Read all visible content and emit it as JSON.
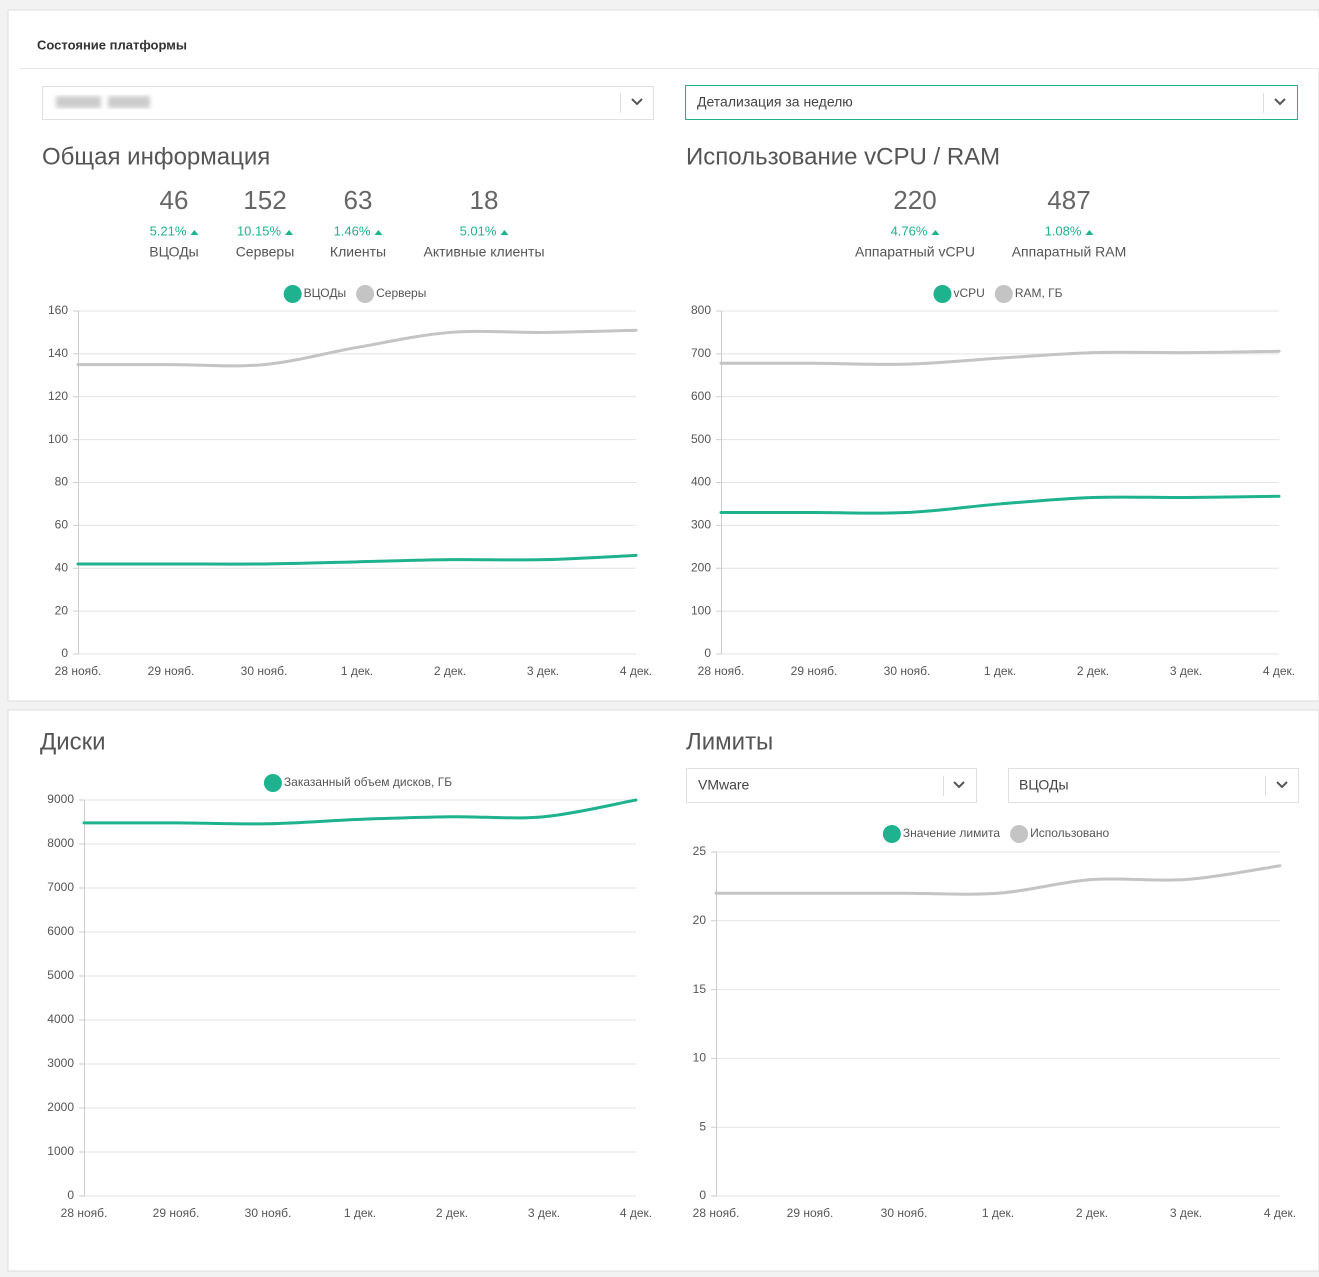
{
  "header": {
    "title": "Состояние платформы"
  },
  "selects": {
    "period": "Детализация за неделю",
    "platform": "VMware",
    "resource": "ВЦОДы"
  },
  "chart_data": [
    {
      "type": "line",
      "title": "Общая информация",
      "stats": [
        {
          "value": "46",
          "change": "5.21%",
          "label": "ВЦОДы"
        },
        {
          "value": "152",
          "change": "10.15%",
          "label": "Серверы"
        },
        {
          "value": "63",
          "change": "1.46%",
          "label": "Клиенты"
        },
        {
          "value": "18",
          "change": "5.01%",
          "label": "Активные клиенты"
        }
      ],
      "categories": [
        "28 нояб.",
        "29 нояб.",
        "30 нояб.",
        "1 дек.",
        "2 дек.",
        "3 дек.",
        "4 дек."
      ],
      "series": [
        {
          "name": "ВЦОДы",
          "color": "#1fb28e",
          "values": [
            42,
            42,
            42,
            43,
            44,
            44,
            46
          ]
        },
        {
          "name": "Серверы",
          "color": "#c4c4c4",
          "values": [
            135,
            135,
            135,
            143,
            150,
            150,
            151
          ]
        }
      ],
      "ylim": [
        0,
        160
      ],
      "yticks": [
        0,
        20,
        40,
        60,
        80,
        100,
        120,
        140,
        160
      ],
      "grid": true,
      "legend": "top"
    },
    {
      "type": "line",
      "title": "Использование vCPU / RAM",
      "stats": [
        {
          "value": "220",
          "change": "4.76%",
          "label": "Аппаратный vCPU"
        },
        {
          "value": "487",
          "change": "1.08%",
          "label": "Аппаратный RAM"
        }
      ],
      "categories": [
        "28 нояб.",
        "29 нояб.",
        "30 нояб.",
        "1 дек.",
        "2 дек.",
        "3 дек.",
        "4 дек."
      ],
      "series": [
        {
          "name": "vCPU",
          "color": "#1fb28e",
          "values": [
            330,
            330,
            330,
            350,
            365,
            365,
            368
          ]
        },
        {
          "name": "RAM, ГБ",
          "color": "#c4c4c4",
          "values": [
            678,
            678,
            676,
            690,
            703,
            703,
            706
          ]
        }
      ],
      "ylim": [
        0,
        800
      ],
      "yticks": [
        0,
        100,
        200,
        300,
        400,
        500,
        600,
        700,
        800
      ],
      "grid": true,
      "legend": "top"
    },
    {
      "type": "line",
      "title": "Диски",
      "categories": [
        "28 нояб.",
        "29 нояб.",
        "30 нояб.",
        "1 дек.",
        "2 дек.",
        "3 дек.",
        "4 дек."
      ],
      "series": [
        {
          "name": "Заказанный объем дисков, ГБ",
          "color": "#1fb28e",
          "values": [
            8480,
            8480,
            8460,
            8560,
            8620,
            8620,
            9000
          ]
        }
      ],
      "ylim": [
        0,
        9000
      ],
      "yticks": [
        0,
        1000,
        2000,
        3000,
        4000,
        5000,
        6000,
        7000,
        8000,
        9000
      ],
      "grid": true,
      "legend": "top"
    },
    {
      "type": "line",
      "title": "Лимиты",
      "categories": [
        "28 нояб.",
        "29 нояб.",
        "30 нояб.",
        "1 дек.",
        "2 дек.",
        "3 дек.",
        "4 дек."
      ],
      "series": [
        {
          "name": "Значение лимита",
          "color": "#1fb28e",
          "values": [
            null,
            null,
            null,
            null,
            null,
            null,
            null
          ]
        },
        {
          "name": "Использовано",
          "color": "#c4c4c4",
          "values": [
            22,
            22,
            22,
            22,
            23,
            23,
            24
          ]
        }
      ],
      "ylim": [
        0,
        25
      ],
      "yticks": [
        0,
        5,
        10,
        15,
        20,
        25
      ],
      "grid": true,
      "legend": "top"
    }
  ]
}
